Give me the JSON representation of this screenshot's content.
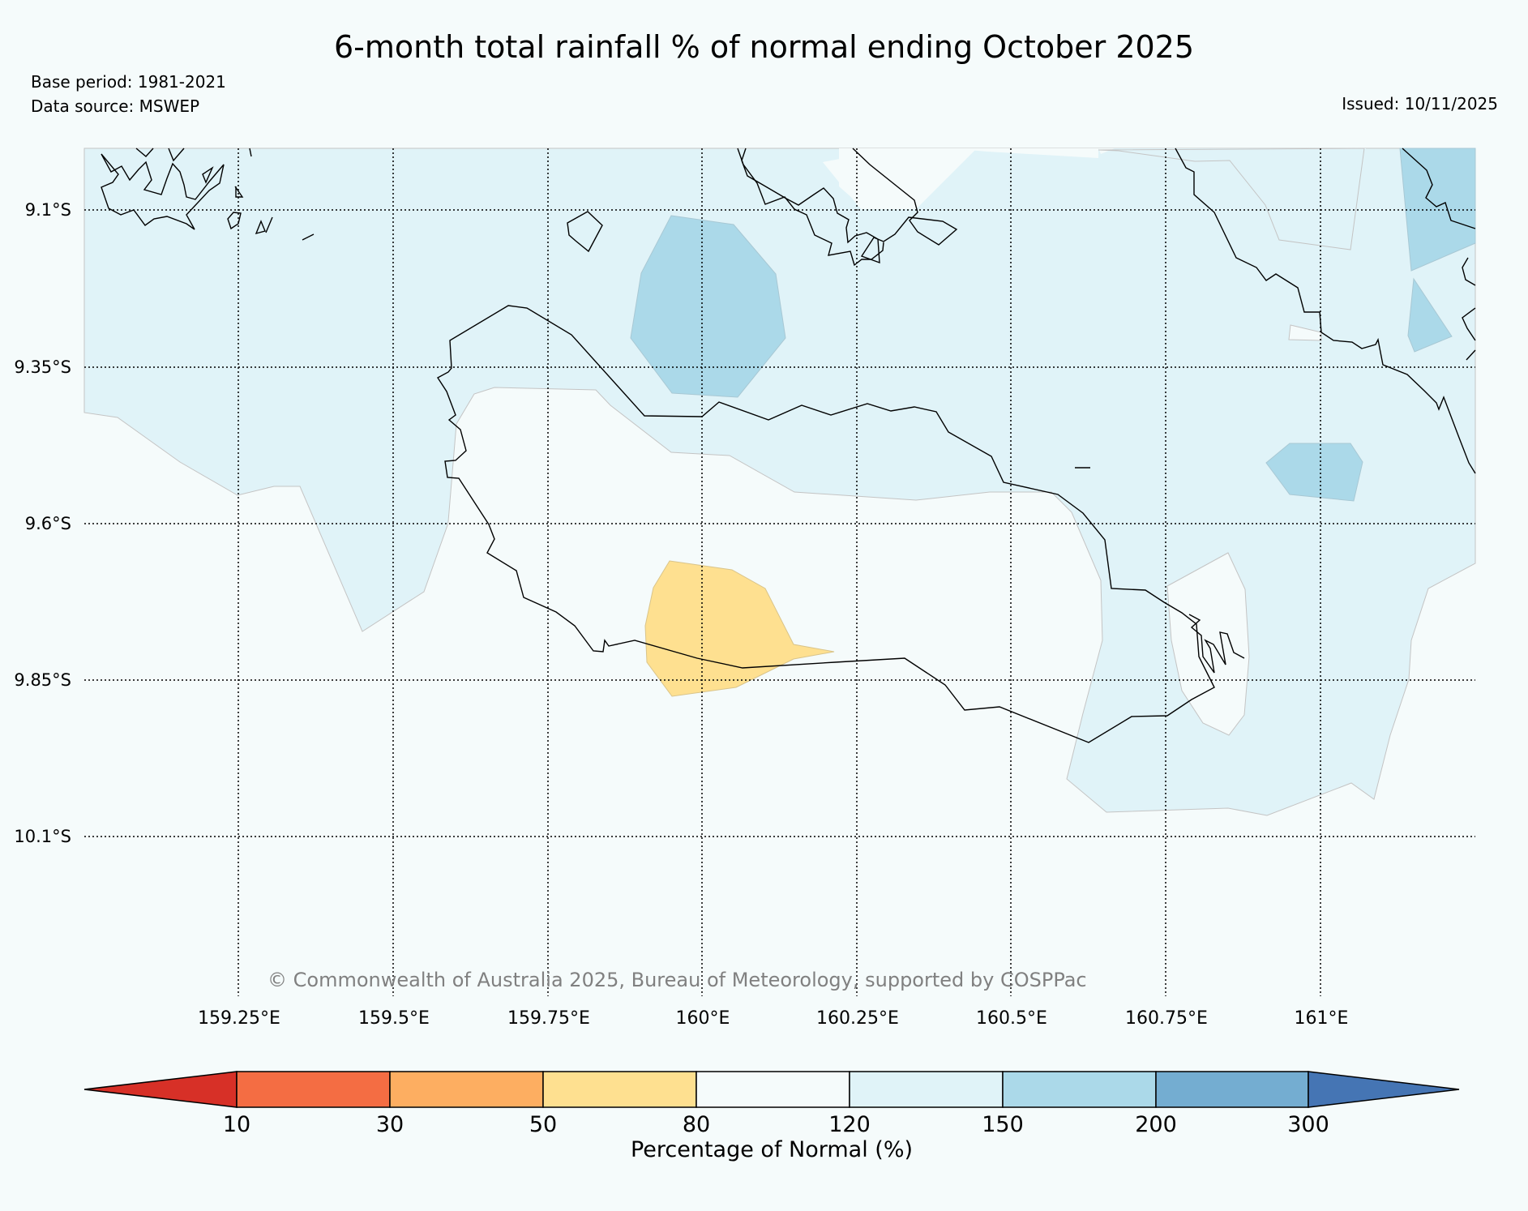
{
  "title": "6-month total rainfall % of normal ending October 2025",
  "base_period": "Base period: 1981-2021",
  "data_source": "Data source: MSWEP",
  "issued": "Issued: 10/11/2025",
  "copyright": "© Commonwealth of Australia 2025, Bureau of Meteorology, supported by COSPPac",
  "lat_labels": [
    "9.1°S",
    "9.35°S",
    "9.6°S",
    "9.85°S",
    "10.1°S"
  ],
  "lon_labels": [
    "159.25°E",
    "159.5°E",
    "159.75°E",
    "160°E",
    "160.25°E",
    "160.5°E",
    "160.75°E",
    "161°E"
  ],
  "colorbar": {
    "title": "Percentage of Normal (%)",
    "ticks": [
      "10",
      "30",
      "50",
      "80",
      "120",
      "150",
      "200",
      "300"
    ],
    "colors": {
      "below_10": "#d73027",
      "10_30": "#f46d43",
      "30_50": "#fdae61",
      "50_80": "#fee090",
      "80_120": "#f5fbfb",
      "120_150": "#e0f3f8",
      "150_200": "#abd9e9",
      "200_300": "#74add1",
      "above_300": "#4575b4"
    }
  }
}
